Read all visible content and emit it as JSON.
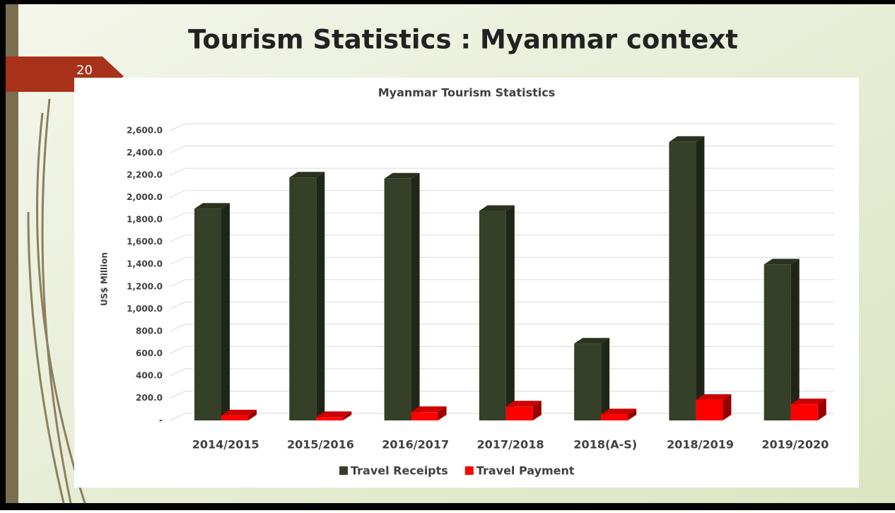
{
  "slide": {
    "title": "Tourism Statistics : Myanmar context",
    "slide_number": "20"
  },
  "chart_data": {
    "type": "bar3d",
    "title": "Myanmar Tourism Statistics",
    "y_label": "US$ Million",
    "categories": [
      "2014/2015",
      "2015/2016",
      "2016/2017",
      "2017/2018",
      "2018(A-S)",
      "2018/2019",
      "2019/2020"
    ],
    "series": [
      {
        "name": "Travel Receipts",
        "color": "#363f27",
        "values": [
          1900,
          2180,
          2170,
          1880,
          690,
          2500,
          1400
        ]
      },
      {
        "name": "Travel Payment",
        "color": "#ff0000",
        "values": [
          45,
          30,
          75,
          125,
          55,
          185,
          145
        ]
      }
    ],
    "ylim": [
      0,
      2600
    ],
    "yticks": [
      {
        "value": 0,
        "label": "-"
      },
      {
        "value": 200,
        "label": "200.0"
      },
      {
        "value": 400,
        "label": "400.0"
      },
      {
        "value": 600,
        "label": "600.0"
      },
      {
        "value": 800,
        "label": "800.0"
      },
      {
        "value": 1000,
        "label": "1,000.0"
      },
      {
        "value": 1200,
        "label": "1,200.0"
      },
      {
        "value": 1400,
        "label": "1,400.0"
      },
      {
        "value": 1600,
        "label": "1,600.0"
      },
      {
        "value": 1800,
        "label": "1,800.0"
      },
      {
        "value": 2000,
        "label": "2,000.0"
      },
      {
        "value": 2200,
        "label": "2,200.0"
      },
      {
        "value": 2400,
        "label": "2,400.0"
      },
      {
        "value": 2600,
        "label": "2,600.0"
      }
    ],
    "grid": true,
    "legend": "bottom"
  }
}
